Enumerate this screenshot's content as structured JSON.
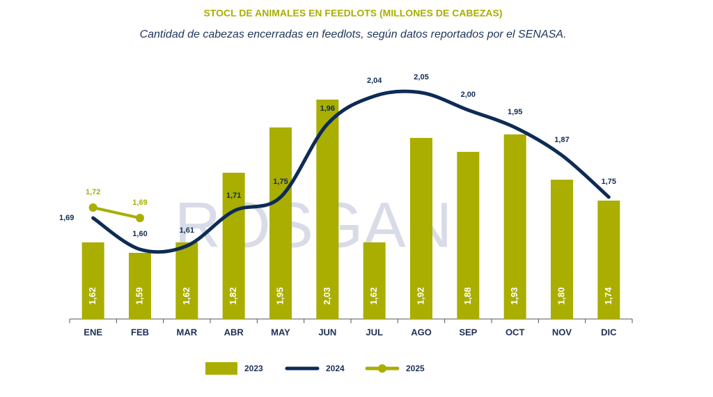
{
  "chart_data": {
    "type": "bar",
    "title": "STOCL DE ANIMALES EN FEEDLOTS (MILLONES DE CABEZAS)",
    "subtitle": "Cantidad de cabezas encerradas en feedlots, según datos reportados por el SENASA.",
    "watermark": "ROSGAN",
    "categories": [
      "ENE",
      "FEB",
      "MAR",
      "ABR",
      "MAY",
      "JUN",
      "JUL",
      "AGO",
      "SEP",
      "OCT",
      "NOV",
      "DIC"
    ],
    "ylim": [
      1.4,
      2.1
    ],
    "series": [
      {
        "name": "2023",
        "type": "bar",
        "color": "#a9ae00",
        "values": [
          1.62,
          1.59,
          1.62,
          1.82,
          1.95,
          2.03,
          1.62,
          1.92,
          1.88,
          1.93,
          1.8,
          1.74
        ],
        "value_labels": [
          "1,62",
          "1,59",
          "1,62",
          "1,82",
          "1,95",
          "2,03",
          "1,62",
          "1,92",
          "1,88",
          "1,93",
          "1,80",
          "1,74"
        ]
      },
      {
        "name": "2024",
        "type": "line",
        "color": "#0d2b55",
        "values": [
          1.69,
          1.6,
          1.61,
          1.71,
          1.75,
          1.96,
          2.04,
          2.05,
          2.0,
          1.95,
          1.87,
          1.75
        ],
        "value_labels": [
          "1,69",
          "1,60",
          "1,61",
          "1,71",
          "1,75",
          "1,96",
          "2,04",
          "2,05",
          "2,00",
          "1,95",
          "1,87",
          "1,75"
        ]
      },
      {
        "name": "2025",
        "type": "line",
        "color": "#a9ae00",
        "markers": true,
        "values": [
          1.72,
          1.69,
          null,
          null,
          null,
          null,
          null,
          null,
          null,
          null,
          null,
          null
        ],
        "value_labels": [
          "1,72",
          "1,69",
          null,
          null,
          null,
          null,
          null,
          null,
          null,
          null,
          null,
          null
        ]
      }
    ]
  }
}
